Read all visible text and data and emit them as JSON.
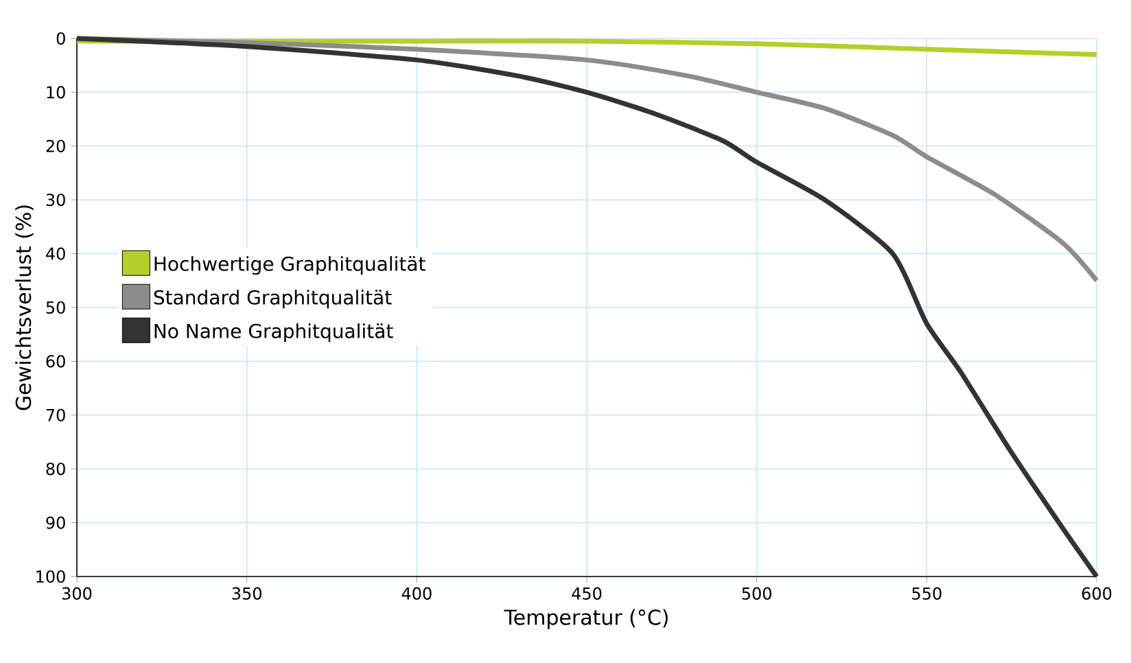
{
  "chart_data": {
    "type": "line",
    "xlabel": "Temperatur (°C)",
    "ylabel": "Gewichtsverlust (%)",
    "xlim": [
      300,
      600
    ],
    "xticks": [
      300,
      350,
      400,
      450,
      500,
      550,
      600
    ],
    "ylim": [
      100,
      0
    ],
    "yticks": [
      0,
      10,
      20,
      30,
      40,
      50,
      60,
      70,
      80,
      90,
      100
    ],
    "grid": true,
    "legend": "left",
    "marker": "none",
    "line_style": "solid",
    "series": [
      {
        "name": "Hochwertige Graphitqualität",
        "color": "#b5cf28",
        "x": [
          300,
          350,
          400,
          450,
          500,
          550,
          600
        ],
        "values": [
          0.5,
          0.5,
          0.5,
          0.5,
          1,
          2,
          3
        ]
      },
      {
        "name": "Standard Graphitqualität",
        "color": "#8c8c8c",
        "x": [
          300,
          350,
          400,
          450,
          480,
          500,
          520,
          540,
          550,
          570,
          590,
          600
        ],
        "values": [
          0,
          0.8,
          2,
          4,
          7,
          10,
          13,
          18,
          22,
          29,
          38,
          45
        ]
      },
      {
        "name": "No Name Graphitqualität",
        "color": "#333333",
        "x": [
          300,
          350,
          400,
          430,
          450,
          470,
          490,
          500,
          520,
          540,
          550,
          560,
          575,
          590,
          600
        ],
        "values": [
          0,
          1.5,
          4,
          7,
          10,
          14,
          19,
          23,
          30,
          40,
          53,
          62,
          77,
          91,
          100
        ]
      }
    ]
  }
}
